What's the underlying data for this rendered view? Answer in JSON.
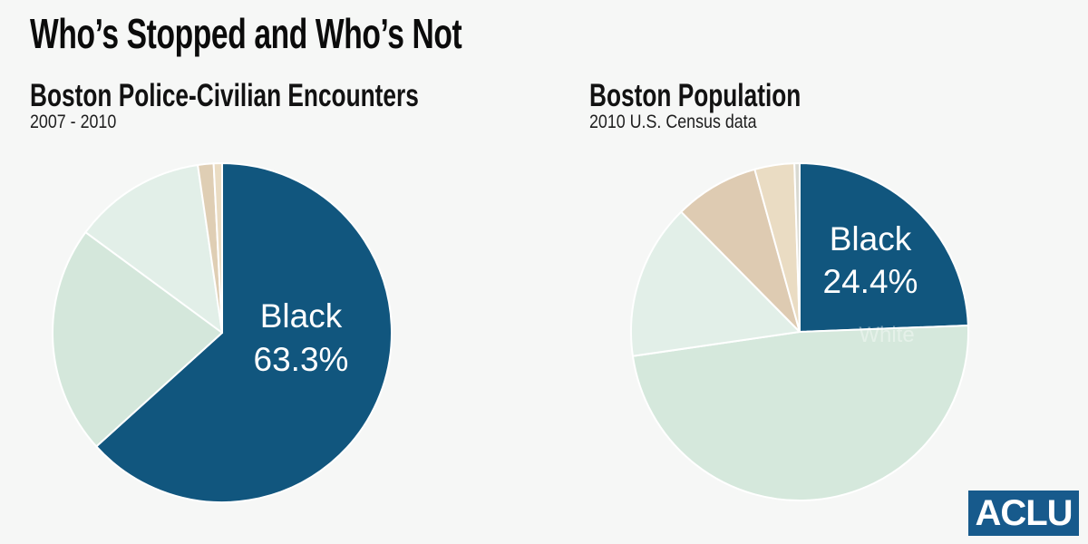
{
  "page": {
    "title": "Who’s Stopped and Who’s Not",
    "background_color": "#F6F7F6"
  },
  "brand": {
    "logo_text": "ACLU",
    "logo_color": "#175A8C"
  },
  "chart_data": [
    {
      "type": "pie",
      "title": "Boston Police-Civilian Encounters",
      "subtitle": "2007 - 2010",
      "callout": {
        "line1": "Black",
        "line2": "63.3%"
      },
      "divider_color": "#FFFFFF",
      "start_angle_deg": 0,
      "direction": "clockwise",
      "slices": [
        {
          "label": "Black",
          "pct": 63.3,
          "color": "#11567E"
        },
        {
          "label": "",
          "pct": 21.8,
          "color": "#D4E7DB"
        },
        {
          "label": "",
          "pct": 12.6,
          "color": "#E2EFE8"
        },
        {
          "label": "",
          "pct": 1.5,
          "color": "#DFCEB4"
        },
        {
          "label": "",
          "pct": 0.8,
          "color": "#EADCC3"
        }
      ]
    },
    {
      "type": "pie",
      "title": "Boston Population",
      "subtitle": "2010 U.S. Census data",
      "callout": {
        "line1": "Black",
        "line2": "24.4%"
      },
      "overlay_label": "White",
      "divider_color": "#FFFFFF",
      "start_angle_deg": 0,
      "direction": "clockwise",
      "slices": [
        {
          "label": "Black",
          "pct": 24.4,
          "color": "#11567E"
        },
        {
          "label": "White",
          "pct": 48.3,
          "color": "#D5E8DC"
        },
        {
          "label": "",
          "pct": 14.9,
          "color": "#E2EFE8"
        },
        {
          "label": "",
          "pct": 8.1,
          "color": "#DECBB2"
        },
        {
          "label": "",
          "pct": 3.8,
          "color": "#EADCC3"
        },
        {
          "label": "",
          "pct": 0.5,
          "color": "#D9D9D1"
        }
      ]
    }
  ]
}
